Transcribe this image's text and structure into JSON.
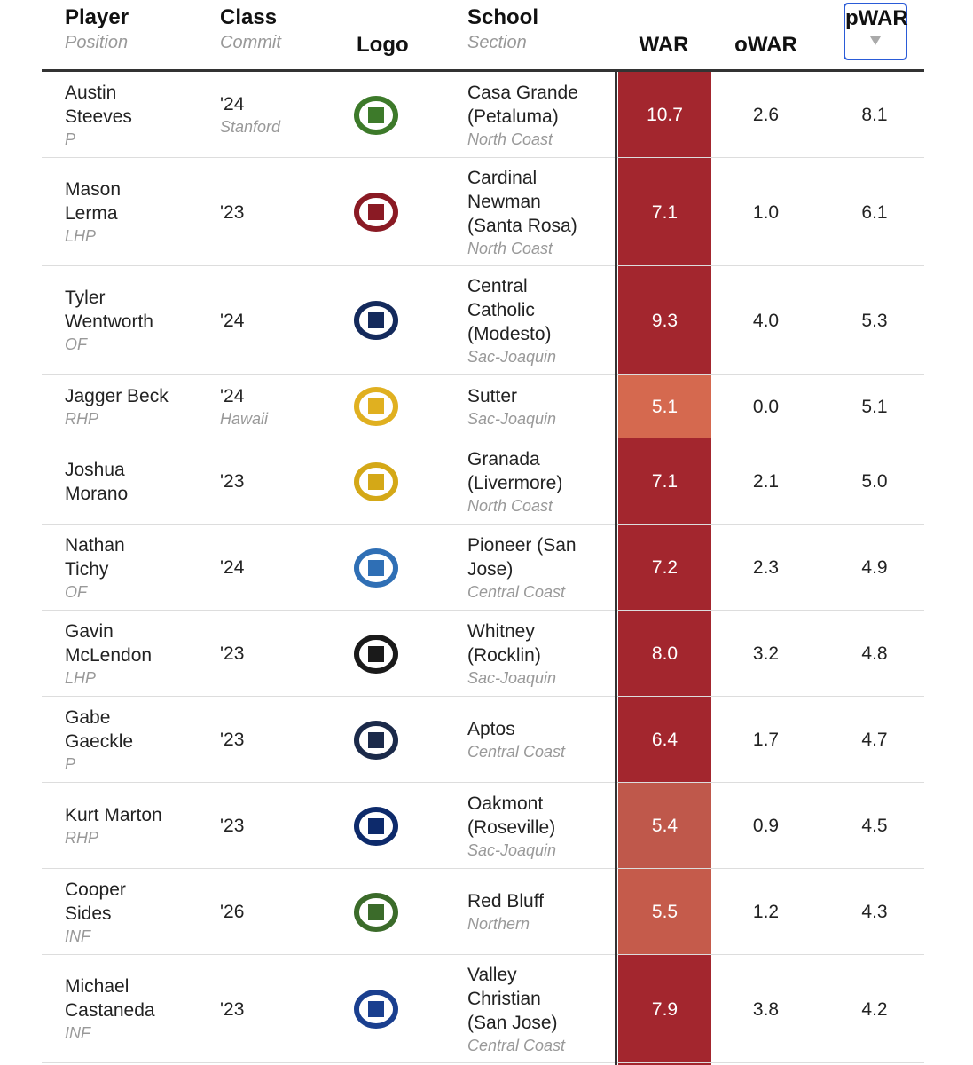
{
  "header": {
    "player": "Player",
    "position": "Position",
    "class": "Class",
    "commit": "Commit",
    "logo": "Logo",
    "school": "School",
    "section": "Section",
    "war": "WAR",
    "owar": "oWAR",
    "pwar": "pWAR"
  },
  "rows": [
    {
      "player": [
        "Austin",
        "Steeves"
      ],
      "position": "P",
      "class": "'24",
      "commit": "Stanford",
      "school": [
        "Casa Grande",
        "(Petaluma)"
      ],
      "section": "North Coast",
      "war": "10.7",
      "owar": "2.6",
      "pwar": "8.1",
      "war_color": "#a3262e",
      "logo_color": "#3d7a2a"
    },
    {
      "player": [
        "Mason",
        "Lerma"
      ],
      "position": "LHP",
      "class": "'23",
      "school": [
        "Cardinal",
        "Newman",
        "(Santa Rosa)"
      ],
      "section": "North Coast",
      "war": "7.1",
      "owar": "1.0",
      "pwar": "6.1",
      "war_color": "#a3262e",
      "logo_color": "#8a1a24"
    },
    {
      "player": [
        "Tyler",
        "Wentworth"
      ],
      "position": "OF",
      "class": "'24",
      "school": [
        "Central",
        "Catholic",
        "(Modesto)"
      ],
      "section": "Sac-Joaquin",
      "war": "9.3",
      "owar": "4.0",
      "pwar": "5.3",
      "war_color": "#a3262e",
      "logo_color": "#142a5c"
    },
    {
      "player": [
        "Jagger Beck"
      ],
      "position": "RHP",
      "class": "'24",
      "commit": "Hawaii",
      "school": [
        "Sutter"
      ],
      "section": "Sac-Joaquin",
      "war": "5.1",
      "owar": "0.0",
      "pwar": "5.1",
      "war_color": "#d5694f",
      "logo_color": "#e0b020"
    },
    {
      "player": [
        "Joshua",
        "Morano"
      ],
      "class": "'23",
      "school": [
        "Granada",
        "(Livermore)"
      ],
      "section": "North Coast",
      "war": "7.1",
      "owar": "2.1",
      "pwar": "5.0",
      "war_color": "#a3262e",
      "logo_color": "#d4a817"
    },
    {
      "player": [
        "Nathan",
        "Tichy"
      ],
      "position": "OF",
      "class": "'24",
      "school": [
        "Pioneer (San",
        "Jose)"
      ],
      "section": "Central Coast",
      "war": "7.2",
      "owar": "2.3",
      "pwar": "4.9",
      "war_color": "#a3262e",
      "logo_color": "#2f6fb5"
    },
    {
      "player": [
        "Gavin",
        "McLendon"
      ],
      "position": "LHP",
      "class": "'23",
      "school": [
        "Whitney",
        "(Rocklin)"
      ],
      "section": "Sac-Joaquin",
      "war": "8.0",
      "owar": "3.2",
      "pwar": "4.8",
      "war_color": "#a3262e",
      "logo_color": "#1a1a1a"
    },
    {
      "player": [
        "Gabe",
        "Gaeckle"
      ],
      "position": "P",
      "class": "'23",
      "school": [
        "Aptos"
      ],
      "section": "Central Coast",
      "war": "6.4",
      "owar": "1.7",
      "pwar": "4.7",
      "war_color": "#a3262e",
      "logo_color": "#1b2a4a"
    },
    {
      "player": [
        "Kurt Marton"
      ],
      "position": "RHP",
      "class": "'23",
      "school": [
        "Oakmont",
        "(Roseville)"
      ],
      "section": "Sac-Joaquin",
      "war": "5.4",
      "owar": "0.9",
      "pwar": "4.5",
      "war_color": "#bf584b",
      "logo_color": "#0d2a6b"
    },
    {
      "player": [
        "Cooper",
        "Sides"
      ],
      "position": "INF",
      "class": "'26",
      "school": [
        "Red Bluff"
      ],
      "section": "Northern",
      "war": "5.5",
      "owar": "1.2",
      "pwar": "4.3",
      "war_color": "#c55b4b",
      "logo_color": "#3b6b2a"
    },
    {
      "player": [
        "Michael",
        "Castaneda"
      ],
      "position": "INF",
      "class": "'23",
      "school": [
        "Valley",
        "Christian",
        "(San Jose)"
      ],
      "section": "Central Coast",
      "war": "7.9",
      "owar": "3.8",
      "pwar": "4.2",
      "war_color": "#a3262e",
      "logo_color": "#1a3f8f"
    }
  ]
}
